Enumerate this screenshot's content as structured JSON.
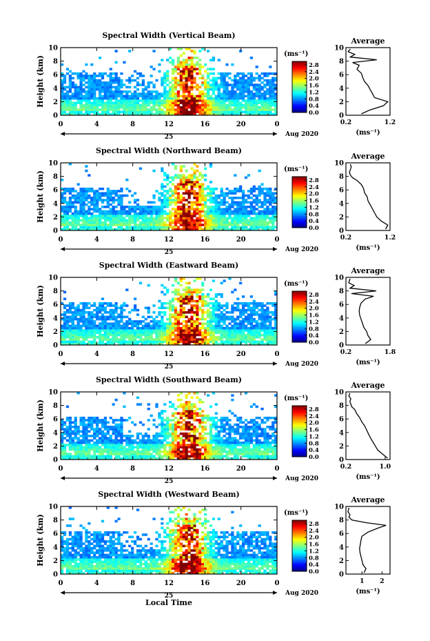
{
  "chart_data": [
    {
      "type": "heatmap",
      "title": "Spectral Width (Vertical Beam)",
      "ylabel": "Height (km)",
      "ylim": [
        0,
        10
      ],
      "yticks": [
        "0",
        "2",
        "4",
        "6",
        "8",
        "10"
      ],
      "xlim": [
        0,
        24
      ],
      "xticks": [
        "0",
        "4",
        "8",
        "12",
        "16",
        "20",
        "0"
      ],
      "day_label": "25",
      "date_label": "Aug 2020",
      "colorbar": {
        "unit": "(ms⁻¹)",
        "ticks": [
          "0.0",
          "0.4",
          "0.8",
          "1.2",
          "1.6",
          "2.0",
          "2.4",
          "2.8"
        ],
        "range": [
          0,
          3.0
        ]
      },
      "profile": {
        "title": "Average",
        "xlabel": "(ms⁻¹)",
        "xticks": [
          "0.2",
          "1.2"
        ],
        "xlim": [
          0.2,
          1.2
        ],
        "height": [
          0.2,
          0.8,
          1.4,
          2.0,
          2.6,
          3.2,
          3.8,
          4.4,
          5.0,
          5.6,
          6.2,
          6.8,
          7.4,
          7.8,
          8.2,
          8.6,
          9.0,
          9.4,
          9.8
        ],
        "width": [
          0.55,
          0.75,
          1.05,
          1.15,
          0.85,
          0.8,
          0.75,
          0.7,
          0.62,
          0.58,
          0.55,
          0.45,
          0.5,
          0.35,
          0.9,
          0.3,
          0.4,
          0.25,
          0.3
        ]
      }
    },
    {
      "type": "heatmap",
      "title": "Spectral Width (Northward Beam)",
      "ylabel": "Height (km)",
      "ylim": [
        0,
        10
      ],
      "yticks": [
        "0",
        "2",
        "4",
        "6",
        "8",
        "10"
      ],
      "xlim": [
        0,
        24
      ],
      "xticks": [
        "0",
        "4",
        "8",
        "12",
        "16",
        "20",
        "0"
      ],
      "day_label": "25",
      "date_label": "Aug 2020",
      "colorbar": {
        "unit": "(ms⁻¹)",
        "ticks": [
          "0.0",
          "0.4",
          "0.8",
          "1.2",
          "1.6",
          "2.0",
          "2.4",
          "2.8"
        ],
        "range": [
          0,
          3.0
        ]
      },
      "profile": {
        "title": "Average",
        "xlabel": "(ms⁻¹)",
        "xticks": [
          "0.2",
          "1.2"
        ],
        "xlim": [
          0.2,
          1.2
        ],
        "height": [
          0.2,
          0.8,
          1.4,
          2.0,
          2.6,
          3.2,
          3.8,
          4.4,
          5.0,
          5.6,
          6.2,
          6.8,
          7.4,
          7.8,
          8.2,
          8.6,
          9.0,
          9.4,
          9.8
        ],
        "width": [
          1.1,
          1.15,
          1.0,
          0.9,
          0.85,
          0.8,
          0.75,
          0.7,
          0.68,
          0.62,
          0.6,
          0.55,
          0.45,
          0.35,
          0.3,
          0.28,
          0.3,
          0.32,
          0.3
        ]
      }
    },
    {
      "type": "heatmap",
      "title": "Spectral Width (Eastward Beam)",
      "ylabel": "Height (km)",
      "ylim": [
        0,
        10
      ],
      "yticks": [
        "0",
        "2",
        "4",
        "6",
        "8",
        "10"
      ],
      "xlim": [
        0,
        24
      ],
      "xticks": [
        "0",
        "4",
        "8",
        "12",
        "16",
        "20",
        "0"
      ],
      "day_label": "25",
      "date_label": "Aug 2020",
      "colorbar": {
        "unit": "(ms⁻¹)",
        "ticks": [
          "0.0",
          "0.4",
          "0.8",
          "1.2",
          "1.6",
          "2.0",
          "2.4",
          "2.8"
        ],
        "range": [
          0,
          3.0
        ]
      },
      "profile": {
        "title": "Average",
        "xlabel": "(ms⁻¹)",
        "xticks": [
          "0.2",
          "1.8"
        ],
        "xlim": [
          0.2,
          1.8
        ],
        "height": [
          0.2,
          0.8,
          1.4,
          2.0,
          2.6,
          3.2,
          3.8,
          4.4,
          5.0,
          5.6,
          6.2,
          6.8,
          7.2,
          7.6,
          8.0,
          8.4,
          8.8,
          9.2,
          9.8
        ],
        "width": [
          0.9,
          1.1,
          1.0,
          0.95,
          0.85,
          0.8,
          0.75,
          0.7,
          0.68,
          0.7,
          0.75,
          0.9,
          1.2,
          0.4,
          1.3,
          0.35,
          0.5,
          0.3,
          0.35
        ]
      }
    },
    {
      "type": "heatmap",
      "title": "Spectral Width (Southward Beam)",
      "ylabel": "Height (km)",
      "ylim": [
        0,
        10
      ],
      "yticks": [
        "0",
        "2",
        "4",
        "6",
        "8",
        "10"
      ],
      "xlim": [
        0,
        24
      ],
      "xticks": [
        "0",
        "4",
        "8",
        "12",
        "16",
        "20",
        "0"
      ],
      "day_label": "25",
      "date_label": "Aug 2020",
      "colorbar": {
        "unit": "(ms⁻¹)",
        "ticks": [
          "0.0",
          "0.4",
          "0.8",
          "1.2",
          "1.6",
          "2.0",
          "2.4",
          "2.8"
        ],
        "range": [
          0,
          3.0
        ]
      },
      "profile": {
        "title": "Average",
        "xlabel": "(ms⁻¹)",
        "xticks": [
          "0.2",
          "1.0"
        ],
        "xlim": [
          0.2,
          1.1
        ],
        "height": [
          0.2,
          0.8,
          1.4,
          2.0,
          2.6,
          3.2,
          3.8,
          4.4,
          5.0,
          5.6,
          6.2,
          6.8,
          7.4,
          7.8,
          8.2,
          8.6,
          9.0,
          9.4,
          9.8
        ],
        "width": [
          1.05,
          0.95,
          0.85,
          0.8,
          0.75,
          0.7,
          0.66,
          0.62,
          0.58,
          0.52,
          0.48,
          0.42,
          0.38,
          0.32,
          0.3,
          0.28,
          0.3,
          0.26,
          0.28
        ]
      }
    },
    {
      "type": "heatmap",
      "title": "Spectral Width (Westward Beam)",
      "ylabel": "Height (km)",
      "ylim": [
        0,
        10
      ],
      "yticks": [
        "0",
        "2",
        "4",
        "6",
        "8",
        "10"
      ],
      "xlim": [
        0,
        24
      ],
      "xticks": [
        "0",
        "4",
        "8",
        "12",
        "16",
        "20",
        "0"
      ],
      "day_label": "25",
      "date_label": "Aug 2020",
      "xlabel": "Local Time",
      "colorbar": {
        "unit": "(ms⁻¹)",
        "ticks": [
          "0.0",
          "0.4",
          "0.8",
          "1.2",
          "1.6",
          "2.0",
          "2.4",
          "2.8"
        ],
        "range": [
          0,
          3.0
        ]
      },
      "profile": {
        "title": "Average",
        "xlabel": "(ms⁻¹)",
        "xticks": [
          "1",
          "2"
        ],
        "xlim": [
          0.2,
          2.4
        ],
        "height": [
          0.2,
          0.8,
          1.4,
          2.0,
          2.6,
          3.2,
          3.8,
          4.4,
          5.0,
          5.6,
          6.2,
          6.8,
          7.2,
          7.6,
          8.0,
          8.4,
          8.8,
          9.2,
          9.8
        ],
        "width": [
          1.1,
          1.2,
          1.05,
          1.0,
          0.95,
          0.9,
          0.88,
          0.92,
          0.95,
          1.0,
          1.3,
          1.8,
          2.2,
          1.2,
          0.5,
          0.35,
          0.4,
          0.3,
          0.35
        ]
      }
    }
  ]
}
